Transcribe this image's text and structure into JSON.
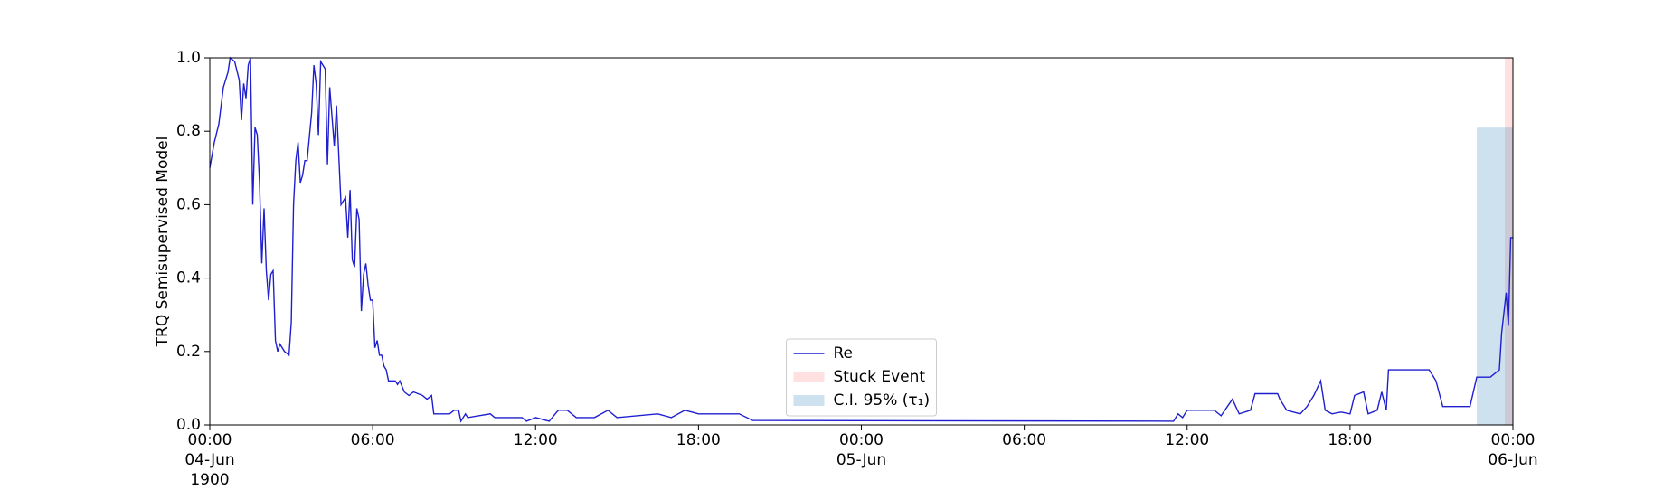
{
  "chart_data": {
    "type": "line",
    "ylabel": "TRQ Semisupervised Model",
    "xlim": [
      "1900-06-04 00:00",
      "1900-06-06 00:00"
    ],
    "xticks": [
      {
        "value": "1900-06-04 00:00",
        "label": "00:00\n04-Jun\n1900"
      },
      {
        "value": "1900-06-04 06:00",
        "label": "06:00"
      },
      {
        "value": "1900-06-04 12:00",
        "label": "12:00"
      },
      {
        "value": "1900-06-04 18:00",
        "label": "18:00"
      },
      {
        "value": "1900-06-05 00:00",
        "label": "00:00\n05-Jun"
      },
      {
        "value": "1900-06-05 06:00",
        "label": "06:00"
      },
      {
        "value": "1900-06-05 12:00",
        "label": "12:00"
      },
      {
        "value": "1900-06-05 18:00",
        "label": "18:00"
      },
      {
        "value": "1900-06-06 00:00",
        "label": "00:00\n06-Jun"
      }
    ],
    "ylim": [
      0,
      1
    ],
    "yticks": [
      {
        "value": 0,
        "label": "0.0"
      },
      {
        "value": 0.2,
        "label": "0.2"
      },
      {
        "value": 0.4,
        "label": "0.4"
      },
      {
        "value": 0.6,
        "label": "0.6"
      },
      {
        "value": 0.8,
        "label": "0.8"
      },
      {
        "value": 1,
        "label": "1.0"
      }
    ],
    "legend": "lower center",
    "series": [
      {
        "name": "Re",
        "color": "#1f1fcf",
        "x": [
          "1900-06-04 00:00",
          "1900-06-04 00:10",
          "1900-06-04 00:20",
          "1900-06-04 00:30",
          "1900-06-04 00:40",
          "1900-06-04 00:45",
          "1900-06-04 00:55",
          "1900-06-04 01:05",
          "1900-06-04 01:10",
          "1900-06-04 01:15",
          "1900-06-04 01:20",
          "1900-06-04 01:25",
          "1900-06-04 01:30",
          "1900-06-04 01:35",
          "1900-06-04 01:40",
          "1900-06-04 01:45",
          "1900-06-04 01:50",
          "1900-06-04 01:55",
          "1900-06-04 02:00",
          "1900-06-04 02:05",
          "1900-06-04 02:10",
          "1900-06-04 02:15",
          "1900-06-04 02:20",
          "1900-06-04 02:25",
          "1900-06-04 02:30",
          "1900-06-04 02:35",
          "1900-06-04 02:45",
          "1900-06-04 02:55",
          "1900-06-04 03:00",
          "1900-06-04 03:05",
          "1900-06-04 03:10",
          "1900-06-04 03:15",
          "1900-06-04 03:20",
          "1900-06-04 03:25",
          "1900-06-04 03:30",
          "1900-06-04 03:35",
          "1900-06-04 03:45",
          "1900-06-04 03:50",
          "1900-06-04 03:55",
          "1900-06-04 04:00",
          "1900-06-04 04:05",
          "1900-06-04 04:15",
          "1900-06-04 04:20",
          "1900-06-04 04:25",
          "1900-06-04 04:35",
          "1900-06-04 04:40",
          "1900-06-04 04:50",
          "1900-06-04 05:00",
          "1900-06-04 05:05",
          "1900-06-04 05:10",
          "1900-06-04 05:15",
          "1900-06-04 05:20",
          "1900-06-04 05:25",
          "1900-06-04 05:30",
          "1900-06-04 05:35",
          "1900-06-04 05:40",
          "1900-06-04 05:45",
          "1900-06-04 05:50",
          "1900-06-04 05:55",
          "1900-06-04 06:00",
          "1900-06-04 06:05",
          "1900-06-04 06:10",
          "1900-06-04 06:15",
          "1900-06-04 06:20",
          "1900-06-04 06:25",
          "1900-06-04 06:30",
          "1900-06-04 06:35",
          "1900-06-04 06:50",
          "1900-06-04 06:55",
          "1900-06-04 07:00",
          "1900-06-04 07:10",
          "1900-06-04 07:20",
          "1900-06-04 07:30",
          "1900-06-04 07:50",
          "1900-06-04 08:00",
          "1900-06-04 08:10",
          "1900-06-04 08:15",
          "1900-06-04 08:50",
          "1900-06-04 09:00",
          "1900-06-04 09:10",
          "1900-06-04 09:15",
          "1900-06-04 09:25",
          "1900-06-04 09:30",
          "1900-06-04 10:20",
          "1900-06-04 10:30",
          "1900-06-04 11:30",
          "1900-06-04 11:40",
          "1900-06-04 12:00",
          "1900-06-04 12:30",
          "1900-06-04 12:50",
          "1900-06-04 13:10",
          "1900-06-04 13:30",
          "1900-06-04 14:10",
          "1900-06-04 14:40",
          "1900-06-04 15:00",
          "1900-06-04 16:30",
          "1900-06-04 17:00",
          "1900-06-04 17:30",
          "1900-06-04 18:00",
          "1900-06-04 19:30",
          "1900-06-04 20:00",
          "1900-06-05 11:30",
          "1900-06-05 11:40",
          "1900-06-05 11:50",
          "1900-06-05 12:00",
          "1900-06-05 13:00",
          "1900-06-05 13:15",
          "1900-06-05 13:40",
          "1900-06-05 13:55",
          "1900-06-05 14:20",
          "1900-06-05 14:30",
          "1900-06-05 15:20",
          "1900-06-05 15:25",
          "1900-06-05 15:40",
          "1900-06-05 16:10",
          "1900-06-05 16:25",
          "1900-06-05 16:40",
          "1900-06-05 16:55",
          "1900-06-05 17:05",
          "1900-06-05 17:20",
          "1900-06-05 17:40",
          "1900-06-05 18:00",
          "1900-06-05 18:10",
          "1900-06-05 18:30",
          "1900-06-05 18:40",
          "1900-06-05 19:00",
          "1900-06-05 19:10",
          "1900-06-05 19:20",
          "1900-06-05 19:25",
          "1900-06-05 20:55",
          "1900-06-05 21:10",
          "1900-06-05 21:25",
          "1900-06-05 22:25",
          "1900-06-05 22:40",
          "1900-06-05 23:10",
          "1900-06-05 23:30",
          "1900-06-05 23:35",
          "1900-06-05 23:45",
          "1900-06-05 23:50",
          "1900-06-05 23:55",
          "1900-06-06 00:00"
        ],
        "values": [
          0.7,
          0.77,
          0.82,
          0.92,
          0.96,
          1.0,
          0.99,
          0.94,
          0.83,
          0.93,
          0.89,
          0.98,
          1.0,
          0.6,
          0.81,
          0.79,
          0.66,
          0.44,
          0.59,
          0.42,
          0.34,
          0.41,
          0.42,
          0.23,
          0.2,
          0.22,
          0.2,
          0.19,
          0.28,
          0.6,
          0.72,
          0.77,
          0.66,
          0.68,
          0.72,
          0.72,
          0.85,
          0.98,
          0.93,
          0.79,
          0.99,
          0.97,
          0.71,
          0.92,
          0.76,
          0.87,
          0.6,
          0.62,
          0.51,
          0.64,
          0.45,
          0.43,
          0.59,
          0.56,
          0.31,
          0.41,
          0.44,
          0.38,
          0.34,
          0.34,
          0.21,
          0.23,
          0.19,
          0.19,
          0.16,
          0.15,
          0.12,
          0.12,
          0.11,
          0.12,
          0.09,
          0.08,
          0.09,
          0.08,
          0.07,
          0.08,
          0.03,
          0.03,
          0.04,
          0.04,
          0.01,
          0.03,
          0.02,
          0.03,
          0.02,
          0.02,
          0.01,
          0.02,
          0.01,
          0.04,
          0.04,
          0.02,
          0.02,
          0.04,
          0.02,
          0.03,
          0.02,
          0.04,
          0.03,
          0.03,
          0.012,
          0.01,
          0.03,
          0.02,
          0.04,
          0.04,
          0.025,
          0.07,
          0.03,
          0.04,
          0.085,
          0.085,
          0.07,
          0.04,
          0.03,
          0.05,
          0.08,
          0.12,
          0.04,
          0.03,
          0.035,
          0.03,
          0.08,
          0.09,
          0.03,
          0.04,
          0.09,
          0.04,
          0.15,
          0.15,
          0.12,
          0.05,
          0.05,
          0.13,
          0.13,
          0.15,
          0.25,
          0.36,
          0.27,
          0.51,
          0.51
        ]
      }
    ],
    "bands": [
      {
        "name": "Stuck Event",
        "color": "rgba(255,120,120,0.22)",
        "x": [
          "1900-06-05 23:42",
          "1900-06-06 00:00"
        ],
        "y": [
          0,
          1
        ]
      },
      {
        "name": "C.I. 95% (τ₁)",
        "color": "rgba(31,119,180,0.22)",
        "x": [
          "1900-06-05 22:40",
          "1900-06-06 00:00"
        ],
        "y": [
          0,
          0.81
        ]
      }
    ]
  }
}
